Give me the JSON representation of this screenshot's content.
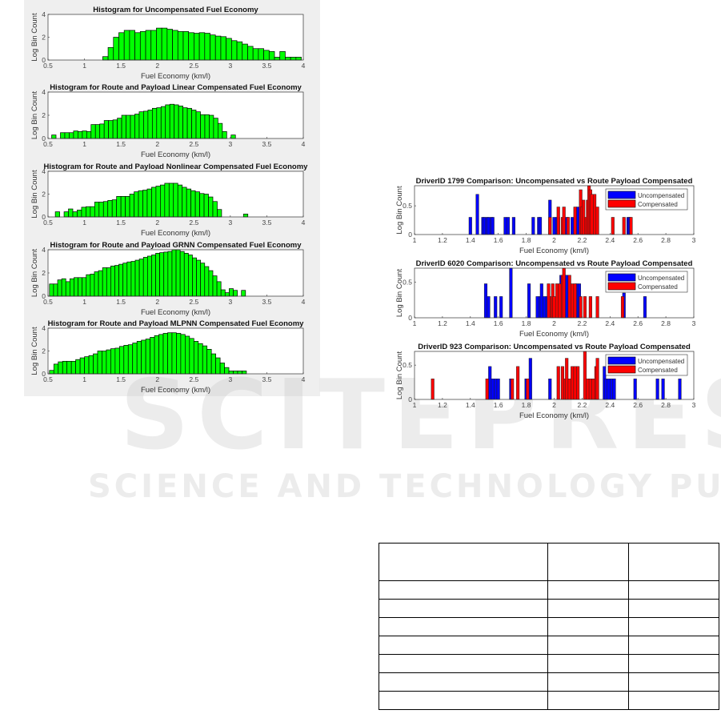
{
  "watermark": {
    "main": "SCITEPRESS",
    "sub": "SCIENCE AND TECHNOLOGY PUBLICATIONS"
  },
  "colors": {
    "hist_bar": "#00ff00",
    "uncompensated": "#0000ff",
    "compensated": "#ff0000"
  },
  "chart_data": [
    {
      "type": "bar",
      "title": "Histogram for Uncompensated Fuel Economy",
      "xlabel": "Fuel Economy (km/l)",
      "ylabel": "Log Bin Count",
      "xlim": [
        0.5,
        4
      ],
      "ylim": [
        0,
        4
      ],
      "xticks": [
        "0.5",
        "1",
        "1.5",
        "2",
        "2.5",
        "3",
        "3.5",
        "4"
      ],
      "yticks": [
        "0",
        "2",
        "4"
      ],
      "bin_start": 1.25,
      "bin_width": 0.0736,
      "values": [
        0.3,
        1.1,
        2.0,
        2.4,
        2.6,
        2.6,
        2.4,
        2.5,
        2.6,
        2.6,
        2.8,
        2.8,
        2.7,
        2.6,
        2.5,
        2.5,
        2.4,
        2.35,
        2.4,
        2.35,
        2.2,
        2.1,
        2.05,
        1.9,
        1.7,
        1.6,
        1.4,
        1.2,
        1.0,
        1.0,
        0.85,
        0.75,
        0.25,
        0.75,
        0.25,
        0.25,
        0.25
      ]
    },
    {
      "type": "bar",
      "title": "Histogram for Route and Payload Linear Compensated Fuel Economy",
      "xlabel": "Fuel Economy (km/l)",
      "ylabel": "Log Bin Count",
      "xlim": [
        0.5,
        4
      ],
      "ylim": [
        0,
        4
      ],
      "xticks": [
        "0.5",
        "1",
        "1.5",
        "2",
        "2.5",
        "3",
        "3.5",
        "4"
      ],
      "yticks": [
        "0",
        "2",
        "4"
      ],
      "bin_start": 0.55,
      "bin_width": 0.06,
      "values": [
        0.3,
        0,
        0.5,
        0.5,
        0.5,
        0.65,
        0.6,
        0.65,
        0.6,
        1.2,
        1.2,
        1.25,
        1.55,
        1.55,
        1.6,
        1.75,
        2.0,
        2.0,
        2.0,
        2.1,
        2.3,
        2.35,
        2.45,
        2.6,
        2.65,
        2.75,
        2.9,
        2.95,
        2.9,
        2.8,
        2.65,
        2.6,
        2.45,
        2.3,
        2.05,
        2.05,
        2.0,
        1.75,
        1.3,
        0.6,
        0,
        0.3
      ]
    },
    {
      "type": "bar",
      "title": "Histogram for Route and Payload Nonlinear Compensated Fuel Economy",
      "xlabel": "Fuel Economy (km/l)",
      "ylabel": "Log Bin Count",
      "xlim": [
        0.5,
        4
      ],
      "ylim": [
        0,
        4
      ],
      "xticks": [
        "0.5",
        "1",
        "1.5",
        "2",
        "2.5",
        "3",
        "3.5",
        "4"
      ],
      "yticks": [
        "0",
        "2",
        "4"
      ],
      "bin_start": 0.6,
      "bin_width": 0.06,
      "values": [
        0.45,
        0,
        0.45,
        0.7,
        0.45,
        0.6,
        0.85,
        0.9,
        0.9,
        1.3,
        1.3,
        1.35,
        1.45,
        1.5,
        1.8,
        1.8,
        1.8,
        2.0,
        2.2,
        2.3,
        2.35,
        2.45,
        2.6,
        2.7,
        2.8,
        2.95,
        2.95,
        2.95,
        2.8,
        2.6,
        2.45,
        2.3,
        2.2,
        2.05,
        2.0,
        1.75,
        1.35,
        0.65,
        0,
        0,
        0,
        0,
        0,
        0.25
      ]
    },
    {
      "type": "bar",
      "title": "Histogram for Route and Payload GRNN Compensated Fuel Economy",
      "xlabel": "Fuel Economy (km/l)",
      "ylabel": "Log Bin Count",
      "xlim": [
        0.5,
        4
      ],
      "ylim": [
        0,
        4
      ],
      "xticks": [
        "0.5",
        "1",
        "1.5",
        "2",
        "2.5",
        "3",
        "3.5",
        "4"
      ],
      "yticks": [
        "0",
        "2",
        "4"
      ],
      "bin_start": 0.52,
      "bin_width": 0.056,
      "values": [
        1.05,
        1.05,
        1.4,
        1.5,
        1.25,
        1.5,
        1.6,
        1.6,
        1.6,
        1.85,
        1.9,
        2.1,
        2.2,
        2.45,
        2.45,
        2.6,
        2.65,
        2.75,
        2.85,
        2.95,
        3.0,
        3.1,
        3.2,
        3.35,
        3.45,
        3.55,
        3.7,
        3.75,
        3.8,
        3.85,
        4.0,
        4.0,
        3.85,
        3.7,
        3.55,
        3.3,
        3.1,
        2.85,
        2.55,
        2.2,
        1.75,
        1.25,
        0.55,
        0.3,
        0.65,
        0.5,
        0,
        0.5
      ]
    },
    {
      "type": "bar",
      "title": "Histogram for Route and Payload MLPNN Compensated Fuel Economy",
      "xlabel": "Fuel Economy (km/l)",
      "ylabel": "Log Bin Count",
      "xlim": [
        0.5,
        4
      ],
      "ylim": [
        0,
        4
      ],
      "xticks": [
        "0.5",
        "1",
        "1.5",
        "2",
        "2.5",
        "3",
        "3.5",
        "4"
      ],
      "yticks": [
        "0",
        "2",
        "4"
      ],
      "bin_start": 0.52,
      "bin_width": 0.06,
      "values": [
        0.3,
        0.85,
        1.05,
        1.1,
        1.1,
        1.1,
        1.25,
        1.4,
        1.5,
        1.6,
        1.75,
        2.0,
        2.0,
        2.1,
        2.2,
        2.25,
        2.4,
        2.5,
        2.55,
        2.7,
        2.85,
        2.95,
        3.05,
        3.2,
        3.35,
        3.45,
        3.55,
        3.6,
        3.6,
        3.55,
        3.45,
        3.3,
        3.1,
        2.85,
        2.65,
        2.45,
        2.15,
        1.75,
        1.4,
        0.95,
        0.55,
        0.25,
        0.25,
        0.25,
        0.25
      ]
    },
    {
      "type": "bar",
      "title": "DriverID 1799 Comparison: Uncompensated vs Route Payload Compensated",
      "xlabel": "Fuel Economy (km/l)",
      "ylabel": "Log Bin Count",
      "xlim": [
        1,
        3
      ],
      "ylim": [
        0,
        0.85
      ],
      "xticks": [
        "1",
        "1.2",
        "1.4",
        "1.6",
        "1.8",
        "2",
        "2.2",
        "2.4",
        "2.6",
        "2.8",
        "3"
      ],
      "yticks": [
        "0",
        "0.5"
      ],
      "legend": "top-right",
      "series": [
        {
          "name": "Uncompensated",
          "x": [
            1.4,
            1.45,
            1.49,
            1.5,
            1.52,
            1.53,
            1.55,
            1.56,
            1.65,
            1.67,
            1.71,
            1.85,
            1.89,
            1.9,
            1.97,
            2.0,
            2.02,
            2.03,
            2.09,
            2.13,
            2.17,
            2.2,
            2.26,
            2.53,
            2.54
          ],
          "values": [
            0.3,
            0.7,
            0.3,
            0.3,
            0.3,
            0.3,
            0.3,
            0.3,
            0.3,
            0.3,
            0.3,
            0.3,
            0.3,
            0.3,
            0.6,
            0.3,
            0.3,
            0.3,
            0.3,
            0.3,
            0.48,
            0.3,
            0.3,
            0.3,
            0.3
          ]
        },
        {
          "name": "Compensated",
          "x": [
            1.97,
            2.03,
            2.06,
            2.07,
            2.1,
            2.15,
            2.19,
            2.2,
            2.21,
            2.23,
            2.24,
            2.25,
            2.26,
            2.27,
            2.29,
            2.31,
            2.42,
            2.5,
            2.55
          ],
          "values": [
            0.3,
            0.48,
            0.3,
            0.48,
            0.3,
            0.48,
            0.78,
            0.48,
            0.6,
            0.3,
            0.6,
            0.85,
            0.78,
            0.7,
            0.7,
            0.48,
            0.3,
            0.3,
            0.3
          ]
        }
      ]
    },
    {
      "type": "bar",
      "title": "DriverID 6020 Comparison: Uncompensated vs Route Payload Compensated",
      "xlabel": "Fuel Economy (km/l)",
      "ylabel": "Log Bin Count",
      "xlim": [
        1,
        3
      ],
      "ylim": [
        0,
        0.7
      ],
      "xticks": [
        "1",
        "1.2",
        "1.4",
        "1.6",
        "1.8",
        "2",
        "2.2",
        "2.4",
        "2.6",
        "2.8",
        "3"
      ],
      "yticks": [
        "0",
        "0.5"
      ],
      "legend": "top-right",
      "series": [
        {
          "name": "Uncompensated",
          "x": [
            1.51,
            1.53,
            1.58,
            1.62,
            1.69,
            1.82,
            1.88,
            1.9,
            1.91,
            1.93,
            1.95,
            2.03,
            2.05,
            2.08,
            2.09,
            2.12,
            2.16,
            2.18,
            2.5,
            2.65
          ],
          "values": [
            0.48,
            0.3,
            0.3,
            0.3,
            0.7,
            0.48,
            0.3,
            0.3,
            0.48,
            0.3,
            0.3,
            0.3,
            0.6,
            0.6,
            0.6,
            0.3,
            0.48,
            0.48,
            0.35,
            0.3
          ]
        },
        {
          "name": "Compensated",
          "x": [
            1.96,
            1.98,
            1.99,
            2.0,
            2.02,
            2.04,
            2.06,
            2.07,
            2.11,
            2.13,
            2.15,
            2.19,
            2.22,
            2.26,
            2.31,
            2.49
          ],
          "values": [
            0.48,
            0.3,
            0.48,
            0.3,
            0.48,
            0.48,
            0.6,
            0.7,
            0.6,
            0.48,
            0.48,
            0.3,
            0.3,
            0.3,
            0.3,
            0.3
          ]
        }
      ]
    },
    {
      "type": "bar",
      "title": "DriverID 923 Comparison: Uncompensated vs Route Payload Compensated",
      "xlabel": "Fuel Economy (km/l)",
      "ylabel": "Log Bin Count",
      "xlim": [
        1,
        3
      ],
      "ylim": [
        0,
        0.7
      ],
      "xticks": [
        "1",
        "1.2",
        "1.4",
        "1.6",
        "1.8",
        "2",
        "2.2",
        "2.4",
        "2.6",
        "2.8",
        "3"
      ],
      "yticks": [
        "0",
        "0.5"
      ],
      "legend": "top-right",
      "series": [
        {
          "name": "Uncompensated",
          "x": [
            1.54,
            1.56,
            1.58,
            1.6,
            1.69,
            1.8,
            1.83,
            1.97,
            2.36,
            2.37,
            2.39,
            2.41,
            2.43,
            2.58,
            2.74,
            2.78,
            2.9
          ],
          "values": [
            0.48,
            0.3,
            0.3,
            0.3,
            0.3,
            0.3,
            0.6,
            0.3,
            0.48,
            0.3,
            0.3,
            0.3,
            0.3,
            0.3,
            0.3,
            0.3,
            0.3
          ]
        },
        {
          "name": "Compensated",
          "x": [
            1.13,
            1.52,
            1.7,
            1.74,
            1.81,
            2.03,
            2.06,
            2.08,
            2.09,
            2.11,
            2.13,
            2.15,
            2.17,
            2.22,
            2.24,
            2.26,
            2.28,
            2.3,
            2.31
          ],
          "values": [
            0.3,
            0.3,
            0.3,
            0.48,
            0.3,
            0.48,
            0.48,
            0.3,
            0.6,
            0.3,
            0.48,
            0.48,
            0.48,
            0.7,
            0.3,
            0.3,
            0.3,
            0.48,
            0.6
          ]
        }
      ]
    }
  ]
}
